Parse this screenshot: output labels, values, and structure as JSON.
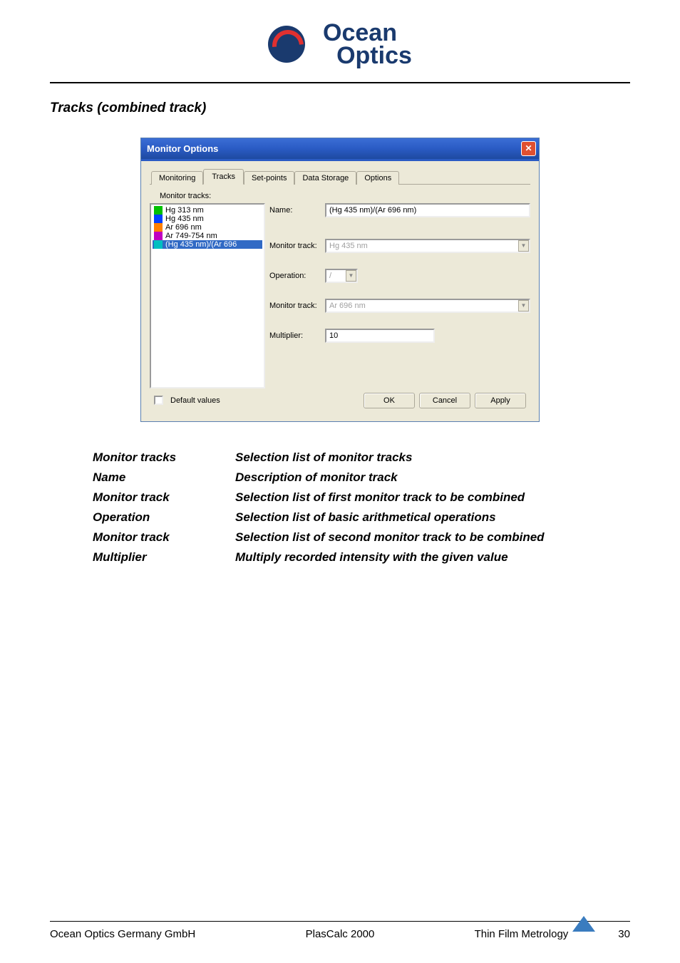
{
  "logo": {
    "line1": "cean",
    "line2": "Optics",
    "prefix": "O"
  },
  "section_title": "Tracks (combined track)",
  "dialog": {
    "title": "Monitor Options",
    "tabs": [
      "Monitoring",
      "Tracks",
      "Set-points",
      "Data Storage",
      "Options"
    ],
    "active_tab_index": 1,
    "list_label": "Monitor tracks:",
    "list": [
      {
        "label": "Hg 313 nm",
        "color": "#00c000",
        "selected": false
      },
      {
        "label": "Hg 435 nm",
        "color": "#0040ff",
        "selected": false
      },
      {
        "label": "Ar 696 nm",
        "color": "#ff8000",
        "selected": false
      },
      {
        "label": "Ar 749-754 nm",
        "color": "#c000c0",
        "selected": false
      },
      {
        "label": "(Hg 435 nm)/(Ar 696",
        "color": "#00c0c0",
        "selected": true
      }
    ],
    "fields": {
      "name_label": "Name:",
      "name_value": "(Hg 435 nm)/(Ar 696 nm)",
      "mt1_label": "Monitor track:",
      "mt1_value": "Hg 435 nm",
      "op_label": "Operation:",
      "op_value": "/",
      "mt2_label": "Monitor track:",
      "mt2_value": "Ar 696 nm",
      "mult_label": "Multiplier:",
      "mult_value": "10"
    },
    "default_values_label": "Default values",
    "btn_ok": "OK",
    "btn_cancel": "Cancel",
    "btn_apply": "Apply"
  },
  "definitions": [
    {
      "term": "Monitor tracks",
      "desc": "Selection list of monitor tracks"
    },
    {
      "term": "Name",
      "desc": "Description of monitor track"
    },
    {
      "term": "Monitor track",
      "desc": "Selection list of first monitor track to be combined"
    },
    {
      "term": "Operation",
      "desc": "Selection list of basic arithmetical operations"
    },
    {
      "term": "Monitor track",
      "desc": "Selection list of second monitor track to be combined"
    },
    {
      "term": "Multiplier",
      "desc": "Multiply recorded intensity with the given value"
    }
  ],
  "footer": {
    "left": "Ocean Optics Germany GmbH",
    "mid": "PlasCalc 2000",
    "right": "Thin Film Metrology",
    "page": "30"
  }
}
